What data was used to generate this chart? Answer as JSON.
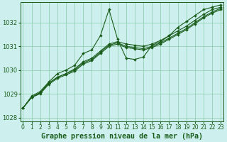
{
  "title": "Graphe pression niveau de la mer (hPa)",
  "bg_color": "#cdf0ee",
  "line_color": "#1a5c1a",
  "grid_color": "#80c8a0",
  "hours": [
    0,
    1,
    2,
    3,
    4,
    5,
    6,
    7,
    8,
    9,
    10,
    11,
    12,
    13,
    14,
    15,
    16,
    17,
    18,
    19,
    20,
    21,
    22,
    23
  ],
  "line1": [
    1028.4,
    1028.9,
    1029.1,
    1029.5,
    1029.85,
    1030.0,
    1030.2,
    1030.7,
    1030.85,
    1031.45,
    1032.55,
    1031.3,
    1030.5,
    1030.45,
    1030.55,
    1031.05,
    1031.2,
    1031.45,
    1031.8,
    1032.05,
    1032.3,
    1032.55,
    1032.65,
    1032.75
  ],
  "line2": [
    1028.4,
    1028.85,
    1029.05,
    1029.45,
    1029.7,
    1029.85,
    1030.05,
    1030.35,
    1030.5,
    1030.8,
    1031.1,
    1031.2,
    1031.1,
    1031.05,
    1031.0,
    1031.1,
    1031.25,
    1031.45,
    1031.65,
    1031.85,
    1032.1,
    1032.35,
    1032.55,
    1032.65
  ],
  "line3": [
    1028.4,
    1028.85,
    1029.05,
    1029.45,
    1029.7,
    1029.85,
    1030.0,
    1030.3,
    1030.45,
    1030.75,
    1031.05,
    1031.15,
    1031.0,
    1030.95,
    1030.9,
    1031.0,
    1031.15,
    1031.35,
    1031.55,
    1031.75,
    1032.0,
    1032.25,
    1032.45,
    1032.6
  ],
  "line4": [
    1028.4,
    1028.85,
    1029.0,
    1029.4,
    1029.65,
    1029.8,
    1029.95,
    1030.25,
    1030.4,
    1030.7,
    1031.0,
    1031.1,
    1030.95,
    1030.9,
    1030.85,
    1030.95,
    1031.1,
    1031.3,
    1031.5,
    1031.7,
    1031.95,
    1032.2,
    1032.4,
    1032.55
  ],
  "ylim": [
    1027.85,
    1032.85
  ],
  "yticks": [
    1028,
    1029,
    1030,
    1031,
    1032
  ],
  "xlim": [
    -0.3,
    23.3
  ],
  "title_fontsize": 7.2,
  "tick_fontsize": 5.5,
  "markersize": 2.0,
  "linewidth": 0.8
}
